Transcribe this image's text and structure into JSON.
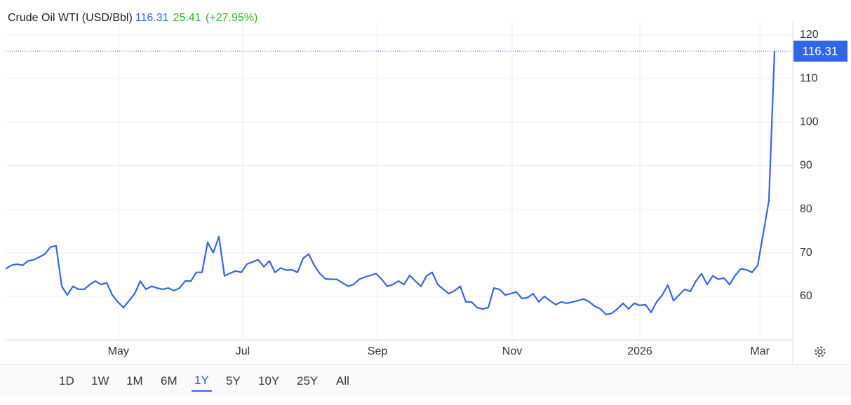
{
  "chart_data": {
    "type": "line",
    "title": "Crude Oil WTI (USD/Bbl)",
    "change": 25.41,
    "change_label": "(+27.95%)",
    "color": "#3366e6",
    "change_color": "#2db82d",
    "values": [
      66.3,
      67.1,
      67.4,
      67.1,
      68.1,
      68.4,
      69.0,
      69.7,
      71.3,
      71.6,
      62.3,
      60.3,
      62.3,
      61.6,
      61.6,
      62.7,
      63.5,
      62.7,
      63.1,
      60.3,
      58.7,
      57.4,
      59.0,
      60.6,
      63.5,
      61.6,
      62.3,
      61.9,
      61.6,
      61.9,
      61.3,
      61.9,
      63.5,
      63.5,
      65.5,
      65.5,
      72.4,
      70.0,
      73.7,
      64.7,
      65.3,
      65.8,
      65.5,
      67.4,
      67.9,
      68.4,
      66.8,
      68.1,
      65.5,
      66.5,
      66.0,
      66.1,
      65.5,
      68.7,
      69.7,
      67.1,
      65.2,
      64.0,
      63.9,
      63.9,
      63.1,
      62.3,
      62.7,
      63.9,
      64.4,
      64.8,
      65.2,
      63.9,
      62.3,
      62.7,
      63.5,
      62.7,
      64.8,
      63.5,
      62.3,
      64.7,
      65.5,
      62.7,
      61.6,
      60.6,
      61.3,
      62.3,
      58.7,
      58.7,
      57.4,
      57.1,
      57.4,
      61.9,
      61.6,
      60.3,
      60.6,
      61.0,
      59.5,
      59.7,
      60.6,
      58.7,
      60.0,
      59.0,
      58.1,
      58.7,
      58.4,
      58.7,
      59.0,
      59.4,
      58.7,
      57.7,
      57.1,
      55.8,
      56.1,
      57.1,
      58.4,
      57.1,
      58.4,
      57.9,
      58.1,
      56.3,
      58.7,
      60.3,
      62.6,
      59.0,
      60.3,
      61.6,
      61.1,
      63.5,
      65.2,
      62.7,
      64.7,
      63.9,
      64.2,
      62.7,
      64.8,
      66.3,
      66.1,
      65.5,
      67.1,
      74.5,
      82.0,
      116.31
    ],
    "xlim": [
      0,
      140.25
    ],
    "xticks": [
      {
        "value": 20.1,
        "label": "May"
      },
      {
        "value": 42.25,
        "label": "Jul"
      },
      {
        "value": 66.25,
        "label": "Sep"
      },
      {
        "value": 90.25,
        "label": "Nov"
      },
      {
        "value": 113,
        "label": "2026"
      },
      {
        "value": 134.4,
        "label": "Mar"
      }
    ],
    "ylim": [
      50,
      122
    ],
    "yticks": [
      60,
      70,
      80,
      90,
      100,
      110,
      120
    ],
    "grid": true,
    "range_buttons": [
      "1D",
      "1W",
      "1M",
      "6M",
      "1Y",
      "5Y",
      "10Y",
      "25Y",
      "All"
    ],
    "selected_range": "1Y"
  }
}
